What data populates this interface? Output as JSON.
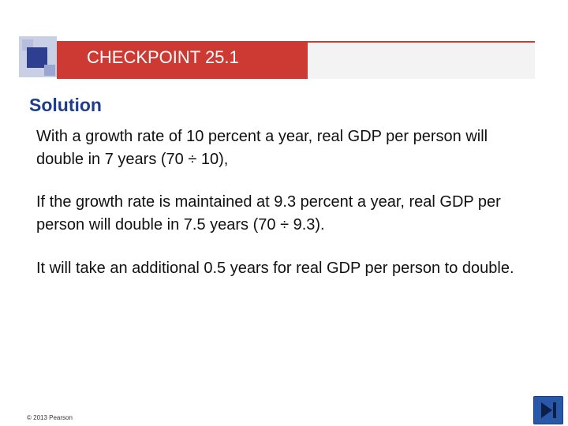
{
  "header": {
    "title": "CHECKPOINT 25.1"
  },
  "content": {
    "heading": "Solution",
    "paragraphs": [
      "With a growth rate of 10 percent a year, real GDP per person will double in 7 years (70 ÷ 10),",
      "If the growth rate is maintained at 9.3 percent a year, real GDP per person will double in 7.5 years (70 ÷ 9.3).",
      "It will take an additional 0.5 years for real GDP per person to double."
    ]
  },
  "footer": {
    "copyright": "© 2013 Pearson"
  },
  "navigation": {
    "button_icon": "skip-to-end-icon"
  },
  "colors": {
    "title_bar": "#cc3a33",
    "heading": "#1f3d8c",
    "nav_button": "#2a58a8"
  }
}
